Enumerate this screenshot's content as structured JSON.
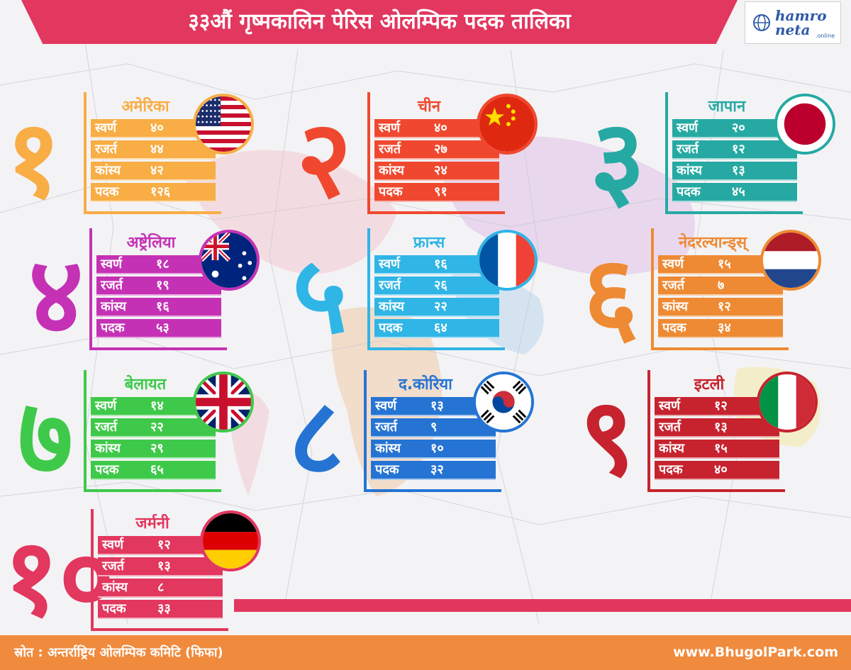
{
  "header": {
    "title": "३३औं गृष्मकालिन पेरिस ओलम्पिक पदक तालिका"
  },
  "logo": {
    "line1": "hamro",
    "line2": "neta",
    "suffix": ".online"
  },
  "labels": {
    "gold": "स्वर्ण",
    "silver": "रजर्त",
    "bronze": "कांस्य",
    "total": "पदक"
  },
  "cards": [
    {
      "rank": "१",
      "country": "अमेरिका",
      "gold": "४०",
      "silver": "४४",
      "bronze": "४२",
      "total": "१२६",
      "color": "#f8ad45",
      "flag": "us-flag-icon"
    },
    {
      "rank": "२",
      "country": "चीन",
      "gold": "४०",
      "silver": "२७",
      "bronze": "२४",
      "total": "९१",
      "color": "#f0482f",
      "flag": "china-flag-icon"
    },
    {
      "rank": "३",
      "country": "जापान",
      "gold": "२०",
      "silver": "१२",
      "bronze": "१३",
      "total": "४५",
      "color": "#26a9a3",
      "flag": "japan-flag-icon"
    },
    {
      "rank": "४",
      "country": "अष्ट्रेलिया",
      "gold": "१८",
      "silver": "१९",
      "bronze": "१६",
      "total": "५३",
      "color": "#c531b5",
      "flag": "australia-flag-icon"
    },
    {
      "rank": "५",
      "country": "फ्रान्स",
      "gold": "१६",
      "silver": "२६",
      "bronze": "२२",
      "total": "६४",
      "color": "#2fb5e6",
      "flag": "france-flag-icon"
    },
    {
      "rank": "६",
      "country": "नेदरल्यान्ड्स्",
      "gold": "१५",
      "silver": "७",
      "bronze": "१२",
      "total": "३४",
      "color": "#ee8a33",
      "flag": "netherlands-flag-icon"
    },
    {
      "rank": "७",
      "country": "बेलायत",
      "gold": "१४",
      "silver": "२२",
      "bronze": "२९",
      "total": "६५",
      "color": "#3fc94a",
      "flag": "uk-flag-icon"
    },
    {
      "rank": "८",
      "country": "द.कोरिया",
      "gold": "१३",
      "silver": "९",
      "bronze": "१०",
      "total": "३२",
      "color": "#2574d3",
      "flag": "south-korea-flag-icon"
    },
    {
      "rank": "९",
      "country": "इटली",
      "gold": "१२",
      "silver": "१३",
      "bronze": "१५",
      "total": "४०",
      "color": "#c6232e",
      "flag": "italy-flag-icon"
    },
    {
      "rank": "१०",
      "country": "जर्मनी",
      "gold": "१२",
      "silver": "१३",
      "bronze": "८",
      "total": "३३",
      "color": "#e2375e",
      "flag": "germany-flag-icon"
    }
  ],
  "footer": {
    "source": "स्रोत : अन्तर्राष्ट्रिय ओलम्पिक कमिटि (फिफा)",
    "website": "www.BhugolPark.com"
  }
}
